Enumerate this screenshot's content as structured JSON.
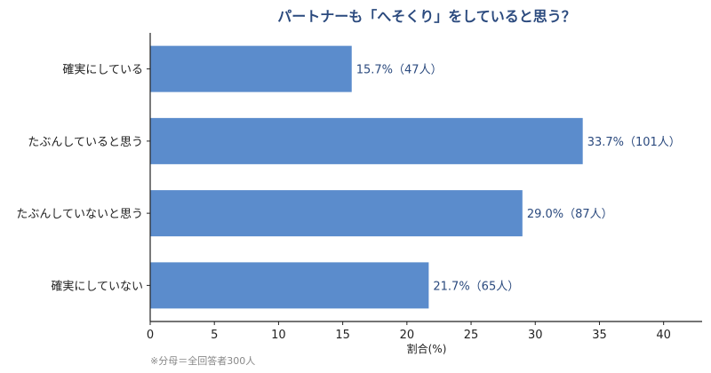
{
  "chart_data": {
    "type": "bar",
    "orientation": "horizontal",
    "title": "パートナーも「へそくり」をしていると思う？",
    "xlabel": "割合(%)",
    "ylabel": "",
    "xlim": [
      0,
      43
    ],
    "xticks": [
      0,
      5,
      10,
      15,
      20,
      25,
      30,
      35,
      40
    ],
    "grid": false,
    "legend": "none",
    "categories": [
      "確実にしている",
      "たぶんしていると思う",
      "たぶんしていないと思う",
      "確実にしていない"
    ],
    "values": [
      15.7,
      33.7,
      29.0,
      21.7
    ],
    "counts": [
      47,
      101,
      87,
      65
    ],
    "data_labels": [
      "15.7%（47人）",
      "33.7%（101人）",
      "29.0%（87人）",
      "21.7%（65人）"
    ],
    "note": "※分母＝全回答者300人",
    "colors": {
      "bar": "#5b8ccc",
      "title": "#2b4a7e",
      "label": "#2b4a7e",
      "axis": "#222222",
      "note": "#888888"
    }
  }
}
